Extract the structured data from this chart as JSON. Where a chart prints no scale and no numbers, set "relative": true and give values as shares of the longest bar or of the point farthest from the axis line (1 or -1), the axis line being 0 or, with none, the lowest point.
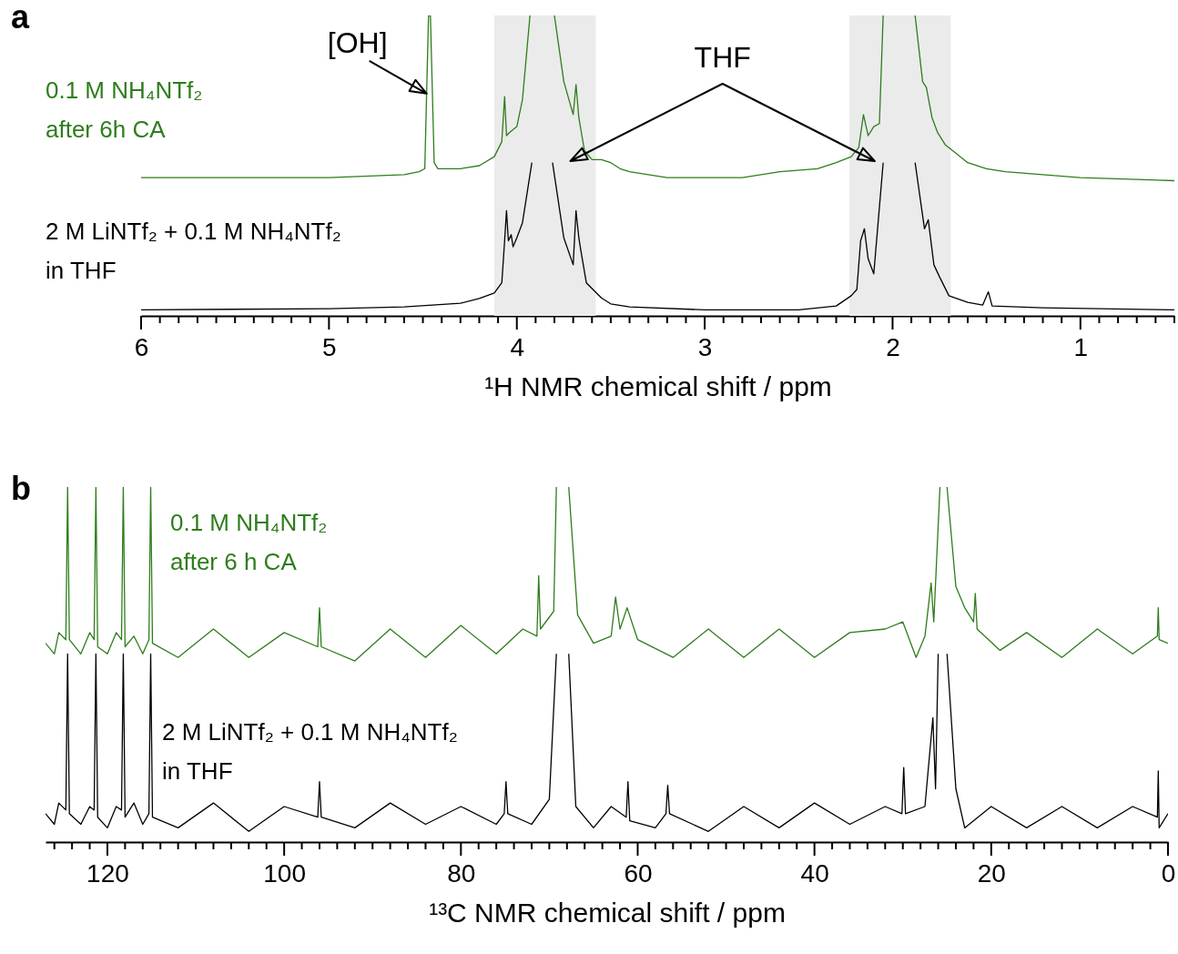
{
  "chart_data": [
    {
      "type": "line",
      "title": "a",
      "xlabel": "¹H NMR chemical shift / ppm",
      "relative": true,
      "xlim": [
        6,
        0.5
      ],
      "xticks": [
        6,
        {
          "value": 5.9,
          "label": null
        },
        {
          "value": 5.8,
          "label": null
        },
        {
          "value": 5.7,
          "label": null
        },
        {
          "value": 5.6,
          "label": null
        },
        {
          "value": 5.5,
          "label": null
        },
        {
          "value": 5.4,
          "label": null
        },
        {
          "value": 5.3,
          "label": null
        },
        {
          "value": 5.2,
          "label": null
        },
        {
          "value": 5.1,
          "label": null
        },
        5,
        {
          "value": 4.9,
          "label": null
        },
        {
          "value": 4.8,
          "label": null
        },
        {
          "value": 4.7,
          "label": null
        },
        {
          "value": 4.6,
          "label": null
        },
        {
          "value": 4.5,
          "label": null
        },
        {
          "value": 4.4,
          "label": null
        },
        {
          "value": 4.3,
          "label": null
        },
        {
          "value": 4.2,
          "label": null
        },
        {
          "value": 4.1,
          "label": null
        },
        4,
        {
          "value": 3.9,
          "label": null
        },
        {
          "value": 3.8,
          "label": null
        },
        {
          "value": 3.7,
          "label": null
        },
        {
          "value": 3.6,
          "label": null
        },
        {
          "value": 3.5,
          "label": null
        },
        {
          "value": 3.4,
          "label": null
        },
        {
          "value": 3.3,
          "label": null
        },
        {
          "value": 3.2,
          "label": null
        },
        {
          "value": 3.1,
          "label": null
        },
        3,
        {
          "value": 2.9,
          "label": null
        },
        {
          "value": 2.8,
          "label": null
        },
        {
          "value": 2.7,
          "label": null
        },
        {
          "value": 2.6,
          "label": null
        },
        {
          "value": 2.5,
          "label": null
        },
        {
          "value": 2.4,
          "label": null
        },
        {
          "value": 2.3,
          "label": null
        },
        {
          "value": 2.2,
          "label": null
        },
        {
          "value": 2.1,
          "label": null
        },
        2,
        {
          "value": 1.9,
          "label": null
        },
        {
          "value": 1.8,
          "label": null
        },
        {
          "value": 1.7,
          "label": null
        },
        {
          "value": 1.6,
          "label": null
        },
        {
          "value": 1.5,
          "label": null
        },
        {
          "value": 1.4,
          "label": null
        },
        {
          "value": 1.3,
          "label": null
        },
        {
          "value": 1.2,
          "label": null
        },
        {
          "value": 1.1,
          "label": null
        },
        1,
        {
          "value": 0.9,
          "label": null
        },
        {
          "value": 0.8,
          "label": null
        },
        {
          "value": 0.7,
          "label": null
        },
        {
          "value": 0.6,
          "label": null
        },
        {
          "value": 0.5,
          "label": null
        }
      ],
      "bands": [
        {
          "axis": "x",
          "from": 4.12,
          "to": 3.58,
          "color": "#ebebeb"
        },
        {
          "axis": "x",
          "from": 2.23,
          "to": 1.69,
          "color": "#ebebeb"
        }
      ],
      "annotations": [
        {
          "text": "[OH]",
          "x": 4.48,
          "y": 0.74
        },
        "THF"
      ],
      "series": [
        {
          "name": "0.1 M NH₄NTf₂\nafter 6h CA",
          "color": "#2e7d1c",
          "x": [
            6,
            5.5,
            5,
            4.6,
            4.52,
            4.49,
            4.47,
            4.46,
            4.44,
            4.42,
            4.3,
            4.2,
            4.12,
            4.08,
            4.065,
            4.055,
            4.04,
            4,
            3.97,
            3.93,
            3.87,
            3.8,
            3.75,
            3.7,
            3.685,
            3.67,
            3.64,
            3.6,
            3.55,
            3.5,
            3.45,
            3.4,
            3.2,
            3,
            2.8,
            2.6,
            2.4,
            2.3,
            2.22,
            2.18,
            2.155,
            2.13,
            2.1,
            2.07,
            2.05,
            1.96,
            1.88,
            1.84,
            1.82,
            1.79,
            1.76,
            1.72,
            1.68,
            1.6,
            1.5,
            1.4,
            1.2,
            1,
            0.5
          ],
          "values": [
            0.46,
            0.46,
            0.46,
            0.47,
            0.48,
            0.49,
            1,
            1,
            0.51,
            0.49,
            0.49,
            0.5,
            0.53,
            0.58,
            0.73,
            0.6,
            0.61,
            0.63,
            0.72,
            1,
            null,
            1,
            0.78,
            0.67,
            0.77,
            0.66,
            0.55,
            0.52,
            0.52,
            0.51,
            0.49,
            0.48,
            0.46,
            0.46,
            0.46,
            0.48,
            0.49,
            0.51,
            0.53,
            0.56,
            0.67,
            0.6,
            0.63,
            0.64,
            1,
            null,
            1,
            0.78,
            0.76,
            0.66,
            0.61,
            0.57,
            0.55,
            0.51,
            0.49,
            0.48,
            0.47,
            0.46,
            0.45
          ]
        },
        {
          "name": "2 M LiNTf₂ + 0.1 M NH₄NTf₂\nin THF",
          "color": "#000000",
          "x": [
            6,
            5,
            4.6,
            4.3,
            4.2,
            4.12,
            4.08,
            4.065,
            4.055,
            4.045,
            4.03,
            4.02,
            4,
            3.97,
            3.92,
            3.87,
            3.81,
            3.75,
            3.7,
            3.685,
            3.67,
            3.66,
            3.63,
            3.55,
            3.5,
            3.4,
            3,
            2.5,
            2.3,
            2.22,
            2.19,
            2.17,
            2.15,
            2.13,
            2.1,
            2.05,
            1.96,
            1.88,
            1.83,
            1.81,
            1.78,
            1.75,
            1.7,
            1.6,
            1.52,
            1.49,
            1.47,
            1.2,
            0.5
          ],
          "values": [
            0.02,
            0.024,
            0.03,
            0.042,
            0.058,
            0.076,
            0.11,
            0.25,
            0.35,
            0.25,
            0.27,
            0.23,
            0.26,
            0.31,
            0.51,
            null,
            0.51,
            0.26,
            0.17,
            0.35,
            0.26,
            0.22,
            0.11,
            0.06,
            0.04,
            0.03,
            0.02,
            0.02,
            0.033,
            0.067,
            0.088,
            0.25,
            0.29,
            0.19,
            0.14,
            0.51,
            null,
            0.51,
            0.29,
            0.32,
            0.17,
            0.13,
            0.067,
            0.045,
            0.036,
            0.08,
            0.033,
            0.027,
            0.02
          ]
        }
      ]
    },
    {
      "type": "line",
      "title": "b",
      "xlabel": "¹³C NMR chemical shift / ppm",
      "relative": true,
      "xlim": [
        127,
        0
      ],
      "xticks": [
        {
          "value": 126,
          "label": null
        },
        {
          "value": 124,
          "label": null
        },
        {
          "value": 122,
          "label": null
        },
        120,
        {
          "value": 118,
          "label": null
        },
        {
          "value": 116,
          "label": null
        },
        {
          "value": 114,
          "label": null
        },
        {
          "value": 112,
          "label": null
        },
        {
          "value": 110,
          "label": null
        },
        {
          "value": 108,
          "label": null
        },
        {
          "value": 106,
          "label": null
        },
        {
          "value": 104,
          "label": null
        },
        {
          "value": 102,
          "label": null
        },
        100,
        {
          "value": 98,
          "label": null
        },
        {
          "value": 96,
          "label": null
        },
        {
          "value": 94,
          "label": null
        },
        {
          "value": 92,
          "label": null
        },
        {
          "value": 90,
          "label": null
        },
        {
          "value": 88,
          "label": null
        },
        {
          "value": 86,
          "label": null
        },
        {
          "value": 84,
          "label": null
        },
        {
          "value": 82,
          "label": null
        },
        80,
        {
          "value": 78,
          "label": null
        },
        {
          "value": 76,
          "label": null
        },
        {
          "value": 74,
          "label": null
        },
        {
          "value": 72,
          "label": null
        },
        {
          "value": 70,
          "label": null
        },
        {
          "value": 68,
          "label": null
        },
        {
          "value": 66,
          "label": null
        },
        {
          "value": 64,
          "label": null
        },
        {
          "value": 62,
          "label": null
        },
        60,
        {
          "value": 58,
          "label": null
        },
        {
          "value": 56,
          "label": null
        },
        {
          "value": 54,
          "label": null
        },
        {
          "value": 52,
          "label": null
        },
        {
          "value": 50,
          "label": null
        },
        {
          "value": 48,
          "label": null
        },
        {
          "value": 46,
          "label": null
        },
        {
          "value": 44,
          "label": null
        },
        {
          "value": 42,
          "label": null
        },
        40,
        {
          "value": 38,
          "label": null
        },
        {
          "value": 36,
          "label": null
        },
        {
          "value": 34,
          "label": null
        },
        {
          "value": 32,
          "label": null
        },
        {
          "value": 30,
          "label": null
        },
        {
          "value": 28,
          "label": null
        },
        {
          "value": 26,
          "label": null
        },
        {
          "value": 24,
          "label": null
        },
        {
          "value": 22,
          "label": null
        },
        20,
        {
          "value": 18,
          "label": null
        },
        {
          "value": 16,
          "label": null
        },
        {
          "value": 14,
          "label": null
        },
        {
          "value": 12,
          "label": null
        },
        {
          "value": 10,
          "label": null
        },
        {
          "value": 8,
          "label": null
        },
        {
          "value": 6,
          "label": null
        },
        {
          "value": 4,
          "label": null
        },
        {
          "value": 2,
          "label": null
        },
        0
      ],
      "series": [
        {
          "name": "0.1 M NH₄NTf₂\nafter 6 h CA",
          "color": "#2e7d1c",
          "x": [
            127,
            126,
            125.5,
            124.7,
            124.5,
            124.3,
            123,
            122,
            121.5,
            121.3,
            121.1,
            120,
            119,
            118.4,
            118.2,
            118,
            117,
            116,
            115.3,
            115.1,
            114.9,
            112,
            108,
            104,
            100,
            96.2,
            96,
            95.8,
            92,
            88,
            84,
            80,
            76,
            73,
            71.4,
            71.2,
            71,
            69.5,
            69.2,
            68.5,
            67.8,
            66.8,
            65,
            63,
            62.5,
            62,
            61.2,
            60,
            56,
            52,
            48,
            44,
            40,
            36,
            32,
            30,
            28.5,
            27.5,
            26.8,
            26.5,
            25.8,
            25.4,
            25,
            24,
            23,
            22,
            21.8,
            21.6,
            19,
            16,
            12,
            8,
            4,
            1.2,
            1.1,
            1,
            0
          ],
          "values": [
            0.56,
            0.53,
            0.59,
            0.57,
            1,
            0.57,
            0.53,
            0.59,
            0.57,
            1,
            0.55,
            0.53,
            0.59,
            0.57,
            1,
            0.55,
            0.58,
            0.53,
            0.57,
            1,
            0.56,
            0.52,
            0.6,
            0.52,
            0.59,
            0.55,
            0.66,
            0.55,
            0.51,
            0.6,
            0.52,
            0.61,
            0.53,
            0.6,
            0.58,
            0.75,
            0.6,
            0.65,
            1,
            null,
            1,
            0.64,
            0.56,
            0.58,
            0.69,
            0.6,
            0.66,
            0.57,
            0.52,
            0.6,
            0.52,
            0.6,
            0.52,
            0.59,
            0.6,
            0.62,
            0.52,
            0.58,
            0.73,
            0.62,
            1,
            null,
            1,
            0.72,
            0.66,
            0.62,
            0.7,
            0.6,
            0.54,
            0.59,
            0.52,
            0.6,
            0.53,
            0.58,
            0.66,
            0.57,
            0.56
          ]
        },
        {
          "name": "2 M LiNTf₂ + 0.1 M NH₄NTf₂\nin THF",
          "color": "#000000",
          "x": [
            127,
            126,
            125.5,
            124.7,
            124.5,
            124.3,
            123,
            122,
            121.5,
            121.3,
            121.1,
            120,
            119,
            118.4,
            118.2,
            118,
            117,
            116,
            115.3,
            115.1,
            114.9,
            112,
            108,
            104,
            100,
            96.2,
            96,
            95.8,
            92,
            88,
            84,
            80,
            76,
            75.1,
            74.9,
            74.7,
            72,
            70,
            69.2,
            68.5,
            67.8,
            67,
            65,
            63,
            61.3,
            61.1,
            60.9,
            58,
            56.8,
            56.6,
            56.4,
            52,
            48,
            44,
            40,
            36,
            32,
            30.1,
            29.9,
            29.7,
            27.5,
            26.6,
            26.3,
            26,
            25.5,
            25,
            24,
            23,
            20,
            16,
            12,
            8,
            4,
            1.2,
            1.1,
            1,
            0
          ],
          "values": [
            0.08,
            0.05,
            0.11,
            0.09,
            0.53,
            0.08,
            0.05,
            0.1,
            0.09,
            0.53,
            0.07,
            0.04,
            0.1,
            0.09,
            0.53,
            0.07,
            0.11,
            0.05,
            0.08,
            0.53,
            0.07,
            0.04,
            0.11,
            0.03,
            0.1,
            0.07,
            0.17,
            0.07,
            0.04,
            0.11,
            0.05,
            0.1,
            0.05,
            0.08,
            0.17,
            0.08,
            0.05,
            0.12,
            0.53,
            null,
            0.53,
            0.1,
            0.04,
            0.1,
            0.07,
            0.17,
            0.06,
            0.04,
            0.08,
            0.16,
            0.08,
            0.03,
            0.1,
            0.04,
            0.11,
            0.05,
            0.1,
            0.08,
            0.21,
            0.08,
            0.1,
            0.35,
            0.15,
            0.53,
            null,
            0.53,
            0.15,
            0.04,
            0.1,
            0.04,
            0.1,
            0.04,
            0.1,
            0.07,
            0.2,
            0.04,
            0.08
          ]
        }
      ]
    }
  ]
}
